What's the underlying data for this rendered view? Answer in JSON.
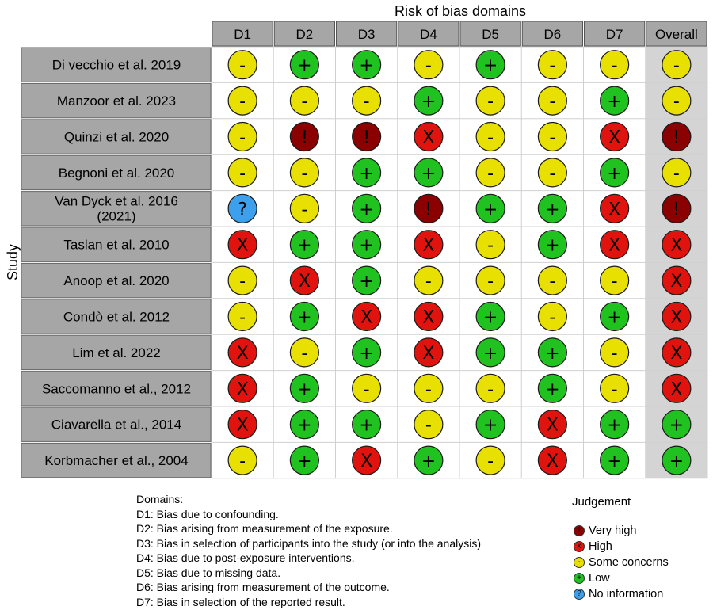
{
  "chart_data": {
    "type": "table",
    "title": "Risk of bias domains",
    "ylabel": "Study",
    "columns": [
      "D1",
      "D2",
      "D3",
      "D4",
      "D5",
      "D6",
      "D7",
      "Overall"
    ],
    "studies": [
      "Di vecchio et al. 2019",
      "Manzoor et al. 2023",
      "Quinzi et al. 2020",
      "Begnoni et al. 2020",
      "Van Dyck et al. 2016 (2021)",
      "Taslan et al. 2010",
      "Anoop et al. 2020",
      "Condò et al. 2012",
      "Lim et al. 2022",
      "Saccomanno et al., 2012",
      "Ciavarella et al., 2014",
      "Korbmacher et al., 2004"
    ],
    "judgements": [
      [
        "some",
        "low",
        "low",
        "some",
        "low",
        "some",
        "some",
        "some"
      ],
      [
        "some",
        "some",
        "some",
        "low",
        "some",
        "some",
        "low",
        "some"
      ],
      [
        "some",
        "veryhigh",
        "veryhigh",
        "high",
        "some",
        "some",
        "high",
        "veryhigh"
      ],
      [
        "some",
        "some",
        "low",
        "low",
        "some",
        "some",
        "low",
        "some"
      ],
      [
        "noinfo",
        "some",
        "low",
        "veryhigh",
        "low",
        "low",
        "high",
        "veryhigh"
      ],
      [
        "high",
        "low",
        "low",
        "high",
        "some",
        "low",
        "high",
        "high"
      ],
      [
        "some",
        "high",
        "low",
        "some",
        "some",
        "some",
        "some",
        "high"
      ],
      [
        "some",
        "low",
        "high",
        "high",
        "low",
        "some",
        "low",
        "high"
      ],
      [
        "high",
        "some",
        "low",
        "high",
        "low",
        "low",
        "some",
        "high"
      ],
      [
        "high",
        "low",
        "some",
        "some",
        "some",
        "low",
        "some",
        "high"
      ],
      [
        "high",
        "low",
        "low",
        "some",
        "low",
        "high",
        "low",
        "low"
      ],
      [
        "some",
        "low",
        "high",
        "low",
        "some",
        "high",
        "low",
        "low"
      ]
    ],
    "symbols": {
      "veryhigh": "!",
      "high": "X",
      "some": "-",
      "low": "+",
      "noinfo": "?"
    },
    "colors": {
      "veryhigh": "#8b0000",
      "high": "#e0130f",
      "some": "#e8e000",
      "low": "#1fc21f",
      "noinfo": "#3da0ec",
      "header": "#a6a6a6",
      "overall_bg": "#d4d4d4"
    }
  },
  "legend": {
    "domains_title": "Domains:",
    "domains": [
      "D1: Bias due to confounding.",
      "D2: Bias arising from measurement of the exposure.",
      "D3: Bias in selection of participants into the study",
      "D4: Bias due to post-exposure interventions.",
      "D5: Bias due to missing data.",
      "D6: Bias arising from measurement of the outcome.",
      "D7: Bias in selection of the reported result."
    ],
    "d3_note": " (or into the analysis)",
    "judgement_title": "Judgement",
    "judgement_items": [
      {
        "key": "veryhigh",
        "label": "Very high",
        "symbol": "!"
      },
      {
        "key": "high",
        "label": "High",
        "symbol": "x"
      },
      {
        "key": "some",
        "label": "Some concerns",
        "symbol": "-"
      },
      {
        "key": "low",
        "label": "Low",
        "symbol": "+"
      },
      {
        "key": "noinfo",
        "label": "No information",
        "symbol": "?"
      }
    ]
  }
}
